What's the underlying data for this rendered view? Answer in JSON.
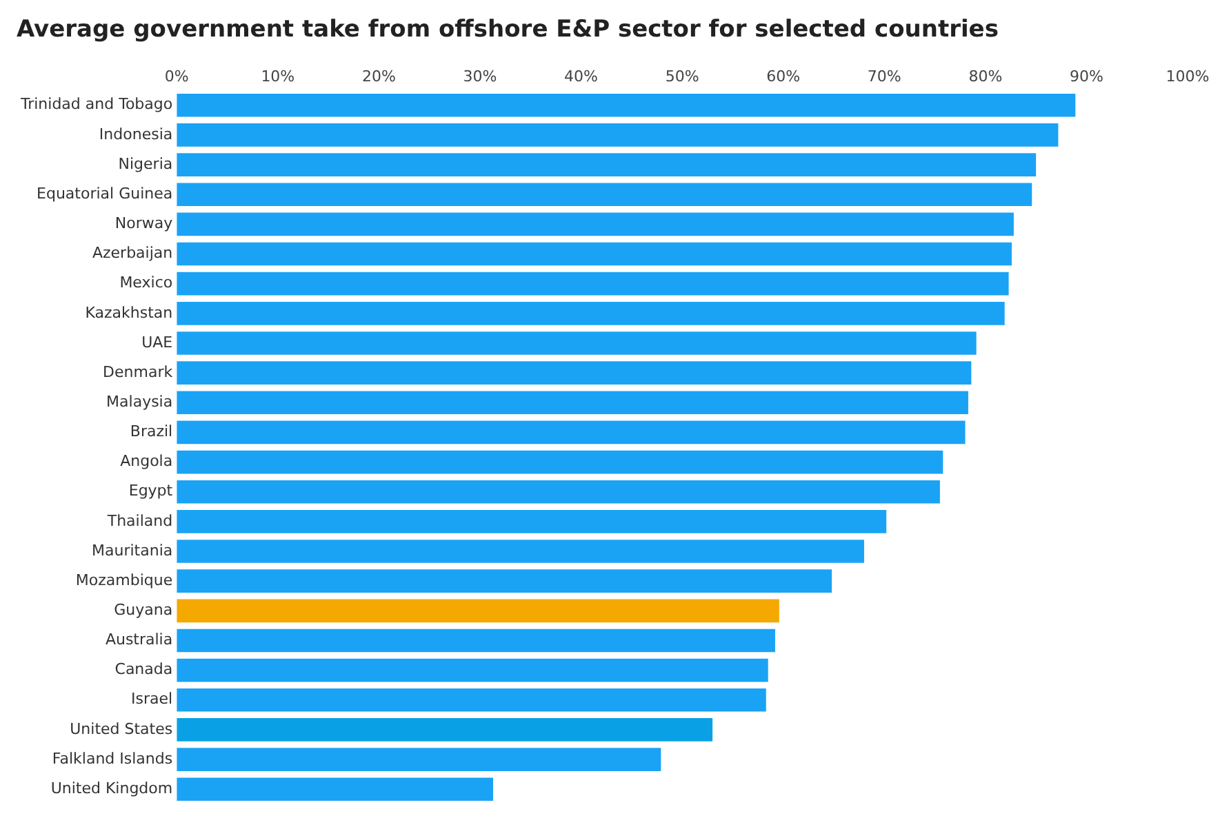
{
  "chart_data": {
    "type": "bar",
    "orientation": "horizontal",
    "title": "Average government take from offshore E&P sector for selected countries",
    "categories": [
      "Trinidad and Tobago",
      "Indonesia",
      "Nigeria",
      "Equatorial Guinea",
      "Norway",
      "Azerbaijan",
      "Mexico",
      "Kazakhstan",
      "UAE",
      "Denmark",
      "Malaysia",
      "Brazil",
      "Angola",
      "Egypt",
      "Thailand",
      "Mauritania",
      "Mozambique",
      "Guyana",
      "Australia",
      "Canada",
      "Israel",
      "United States",
      "Falkland Islands",
      "United Kingdom"
    ],
    "values": [
      88.9,
      87.2,
      85.0,
      84.6,
      82.8,
      82.6,
      82.3,
      81.9,
      79.1,
      78.6,
      78.3,
      78.0,
      75.8,
      75.5,
      70.2,
      68.0,
      64.8,
      59.6,
      59.2,
      58.5,
      58.3,
      53.0,
      47.9,
      31.3
    ],
    "colors": [
      "#1aa3f5",
      "#1aa3f5",
      "#1aa3f5",
      "#1aa3f5",
      "#1aa3f5",
      "#1aa3f5",
      "#1aa3f5",
      "#1aa3f5",
      "#1aa3f5",
      "#1aa3f5",
      "#1aa3f5",
      "#1aa3f5",
      "#1aa3f5",
      "#1aa3f5",
      "#1aa3f5",
      "#1aa3f5",
      "#1aa3f5",
      "#f5a800",
      "#1aa3f5",
      "#1aa3f5",
      "#1aa3f5",
      "#0aa0e6",
      "#1aa3f5",
      "#1aa3f5"
    ],
    "xlim": [
      0,
      100
    ],
    "xticks": [
      {
        "value": 0,
        "label": "0%"
      },
      {
        "value": 10,
        "label": "10%"
      },
      {
        "value": 20,
        "label": "20%"
      },
      {
        "value": 30,
        "label": "30%"
      },
      {
        "value": 40,
        "label": "40%"
      },
      {
        "value": 50,
        "label": "50%"
      },
      {
        "value": 60,
        "label": "60%"
      },
      {
        "value": 70,
        "label": "70%"
      },
      {
        "value": 80,
        "label": "80%"
      },
      {
        "value": 90,
        "label": "90%"
      },
      {
        "value": 100,
        "label": "100%"
      }
    ],
    "grid": false,
    "legend": false
  }
}
